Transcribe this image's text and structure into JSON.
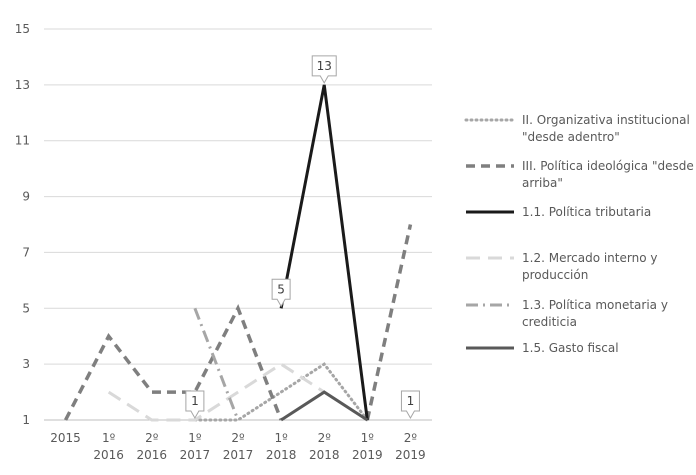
{
  "chart_data": {
    "type": "line",
    "ylim": [
      1,
      15
    ],
    "yticks": [
      1,
      3,
      5,
      7,
      9,
      11,
      13,
      15
    ],
    "categories": [
      [
        "2015"
      ],
      [
        "1º",
        "2016"
      ],
      [
        "2º",
        "2016"
      ],
      [
        "1º",
        "2017"
      ],
      [
        "2º",
        "2017"
      ],
      [
        "1º",
        "2018"
      ],
      [
        "2º",
        "2018"
      ],
      [
        "1º",
        "2019"
      ],
      [
        "2º",
        "2019"
      ]
    ],
    "grid": "horizontal",
    "legend_position": "right",
    "series": [
      {
        "name": "II. Organizativa institucional \"desde adentro\"",
        "legend_lines": [
          "II. Organizativa institucional",
          "\"desde adentro\""
        ],
        "color": "#a6a6a6",
        "dash": "dotted",
        "values": [
          null,
          null,
          null,
          1,
          1,
          2,
          3,
          1,
          null
        ]
      },
      {
        "name": "III. Política ideológica \"desde arriba\"",
        "legend_lines": [
          "III. Política ideológica \"desde",
          "arriba\""
        ],
        "color": "#7f7f7f",
        "dash": "dashed",
        "values": [
          1,
          4,
          2,
          2,
          5,
          1,
          null,
          1,
          8
        ]
      },
      {
        "name": "1.1. Política tributaria",
        "legend_lines": [
          "1.1. Política tributaria"
        ],
        "color": "#1a1a1a",
        "dash": "solid",
        "values": [
          null,
          null,
          null,
          null,
          null,
          5,
          13,
          1,
          null
        ]
      },
      {
        "name": "1.2. Mercado interno y producción",
        "legend_lines": [
          "1.2. Mercado interno y",
          "producción"
        ],
        "color": "#d9d9d9",
        "dash": "longdash",
        "values": [
          null,
          2,
          1,
          1,
          2,
          3,
          2,
          null,
          null
        ]
      },
      {
        "name": "1.3. Política monetaria y crediticia",
        "legend_lines": [
          "1.3. Política monetaria y",
          "crediticia"
        ],
        "color": "#a6a6a6",
        "dash": "dashdot",
        "values": [
          null,
          null,
          null,
          5,
          1,
          null,
          null,
          null,
          null
        ]
      },
      {
        "name": "1.5. Gasto fiscal",
        "legend_lines": [
          "1.5. Gasto fiscal"
        ],
        "color": "#595959",
        "dash": "solid",
        "values": [
          null,
          null,
          null,
          null,
          null,
          1,
          2,
          1,
          null
        ]
      }
    ],
    "data_labels": [
      {
        "category_index": 3,
        "value": 1,
        "text": "1"
      },
      {
        "category_index": 5,
        "value": 5,
        "text": "5"
      },
      {
        "category_index": 6,
        "value": 13,
        "text": "13"
      },
      {
        "category_index": 8,
        "value": 1,
        "text": "1"
      }
    ]
  }
}
